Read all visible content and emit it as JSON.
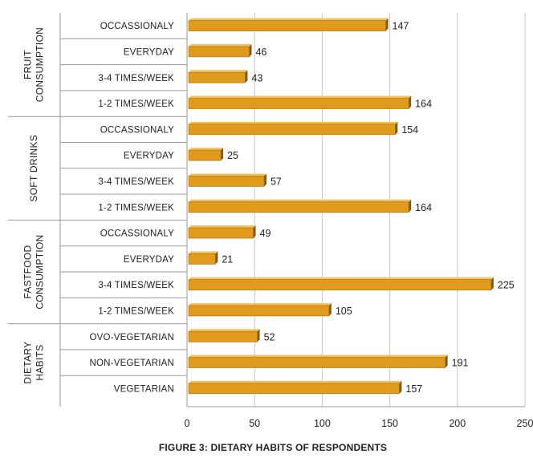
{
  "chart_data": {
    "type": "bar",
    "orientation": "horizontal",
    "caption": "FIGURE 3: DIETARY HABITS OF RESPONDENTS",
    "xlim": [
      0,
      250
    ],
    "x_ticks": [
      0,
      50,
      100,
      150,
      200,
      250
    ],
    "grid": true,
    "bar_color": "#E09A1C",
    "bar_shadow_color": "#8A5A08",
    "groups": [
      {
        "label_lines": [
          "FRUIT",
          "CONSUMPTION"
        ],
        "bars": [
          {
            "category": "OCCASSIONALY",
            "value": 147
          },
          {
            "category": "EVERYDAY",
            "value": 46
          },
          {
            "category": "3-4 TIMES/WEEK",
            "value": 43
          },
          {
            "category": "1-2 TIMES/WEEK",
            "value": 164
          }
        ]
      },
      {
        "label_lines": [
          "SOFT DRINKS"
        ],
        "bars": [
          {
            "category": "OCCASSIONALY",
            "value": 154
          },
          {
            "category": "EVERYDAY",
            "value": 25
          },
          {
            "category": "3-4 TIMES/WEEK",
            "value": 57
          },
          {
            "category": "1-2 TIMES/WEEK",
            "value": 164
          }
        ]
      },
      {
        "label_lines": [
          "FASTFOOD",
          "CONSUMPTION"
        ],
        "bars": [
          {
            "category": "OCCASSIONALY",
            "value": 49
          },
          {
            "category": "EVERYDAY",
            "value": 21
          },
          {
            "category": "3-4 TIMES/WEEK",
            "value": 225
          },
          {
            "category": "1-2 TIMES/WEEK",
            "value": 105
          }
        ]
      },
      {
        "label_lines": [
          "DIETARY",
          "HABITS"
        ],
        "bars": [
          {
            "category": "OVO-VEGETARIAN",
            "value": 52
          },
          {
            "category": "NON-VEGETARIAN",
            "value": 191
          },
          {
            "category": "VEGETARIAN",
            "value": 157
          }
        ]
      }
    ]
  }
}
